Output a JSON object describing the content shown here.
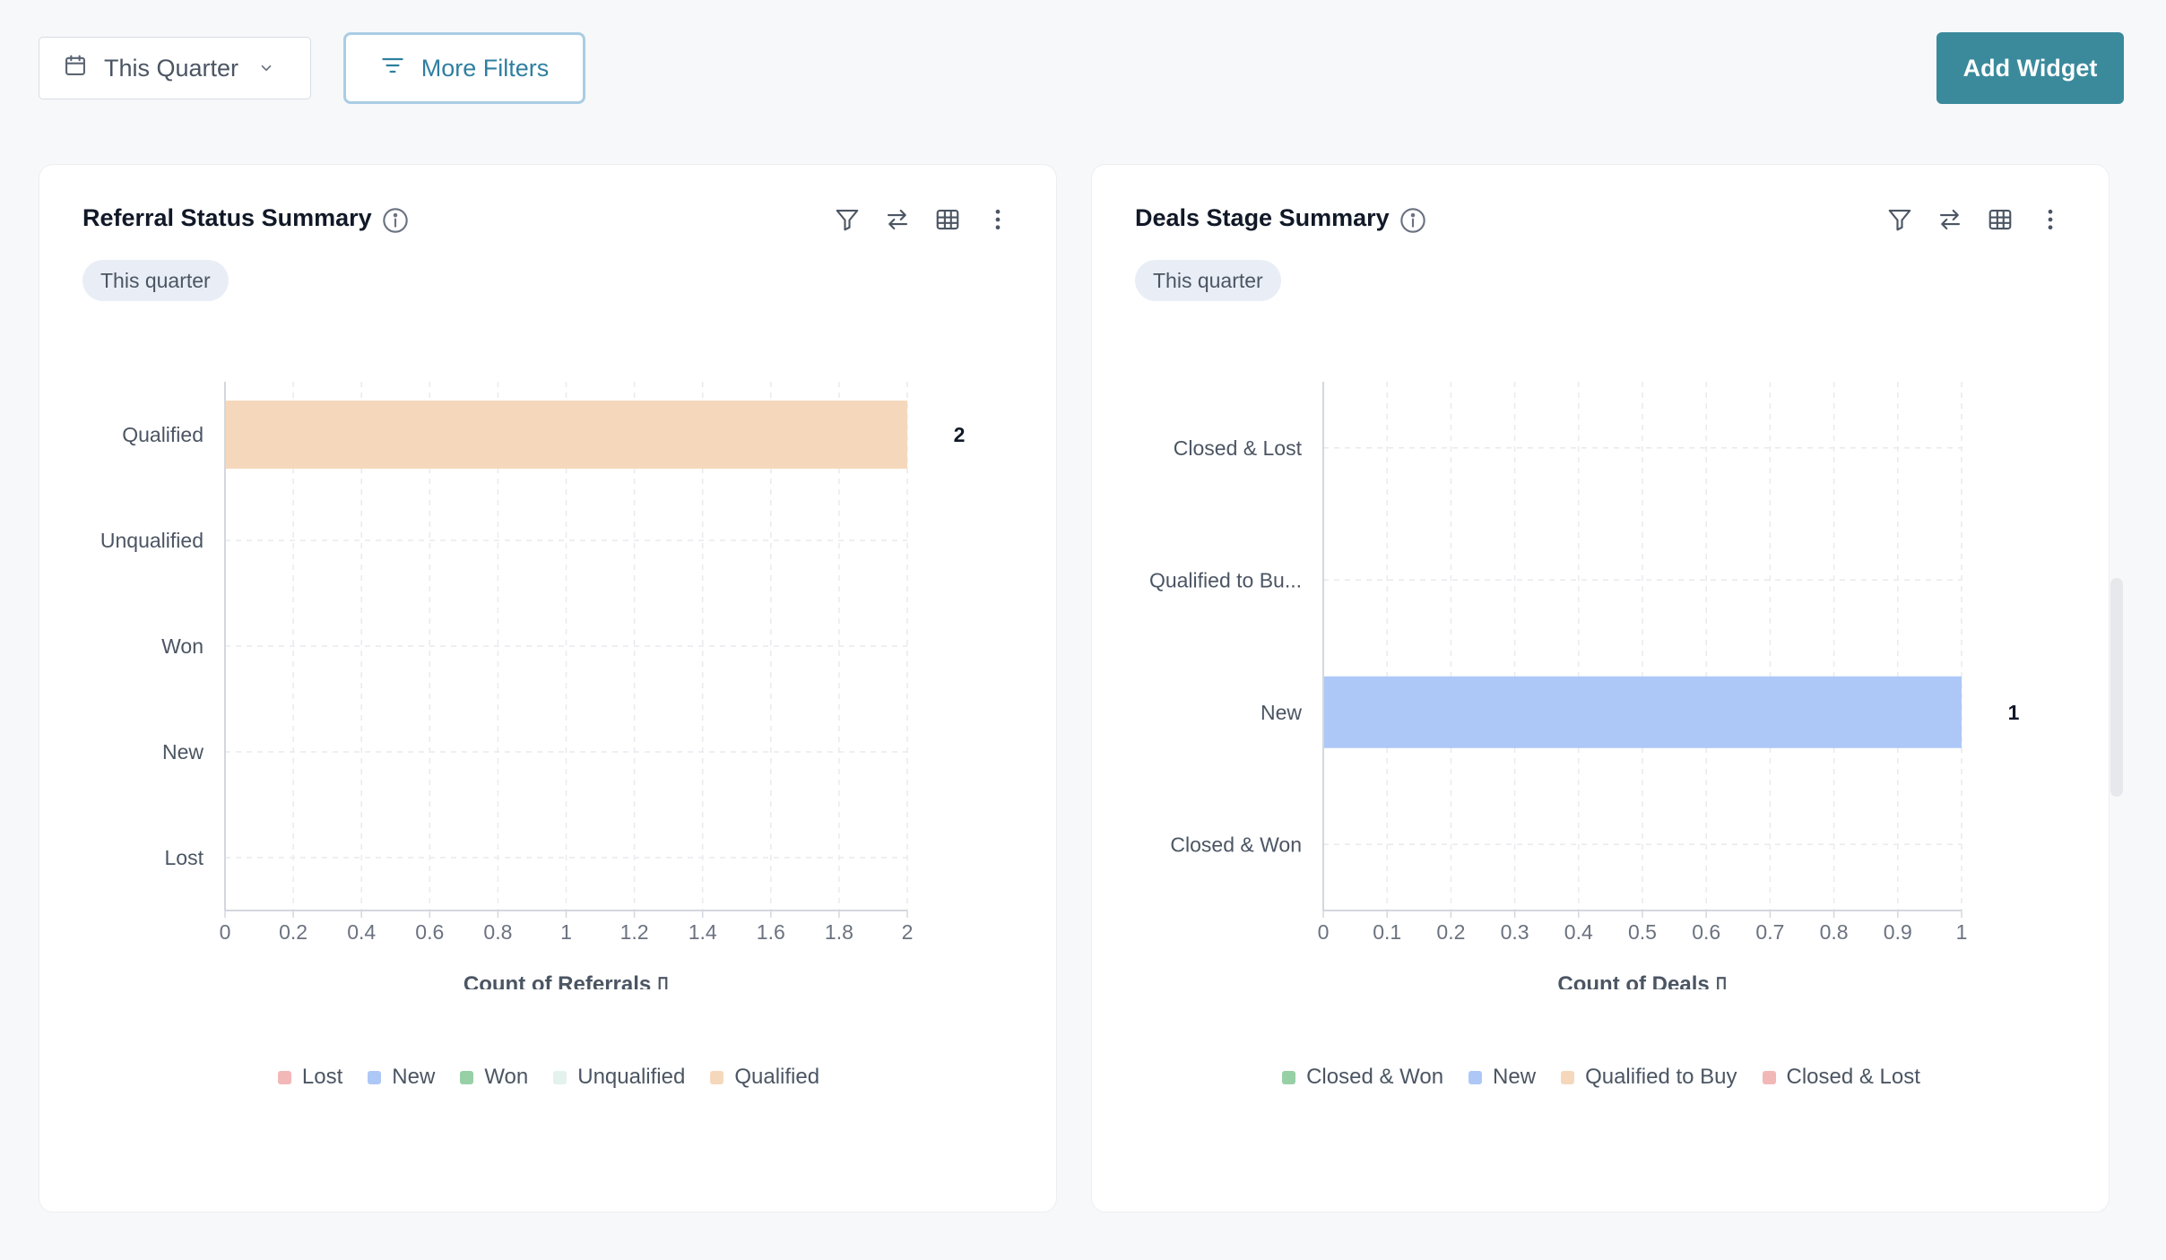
{
  "toolbar": {
    "date_filter_label": "This Quarter",
    "more_filters_label": "More Filters",
    "add_widget_label": "Add Widget"
  },
  "widgets": [
    {
      "title": "Referral Status Summary",
      "period_pill": "This quarter",
      "chart_data": {
        "type": "bar",
        "orientation": "horizontal",
        "categories": [
          "Qualified",
          "Unqualified",
          "Won",
          "New",
          "Lost"
        ],
        "values": [
          2,
          0,
          0,
          0,
          0
        ],
        "data_labels": [
          "2",
          "",
          "",
          "",
          ""
        ],
        "xlim": [
          0,
          2
        ],
        "x_ticks": [
          "0",
          "0.2",
          "0.4",
          "0.6",
          "0.8",
          "1",
          "1.2",
          "1.4",
          "1.6",
          "1.8",
          "2"
        ],
        "xlabel": "Count of Referrals ▯",
        "ylabel": "",
        "grid": true,
        "legend": [
          {
            "label": "Lost",
            "color": "#f2b8b8"
          },
          {
            "label": "New",
            "color": "#adc8f7"
          },
          {
            "label": "Won",
            "color": "#98d0a6"
          },
          {
            "label": "Unqualified",
            "color": "#e3f2ec"
          },
          {
            "label": "Qualified",
            "color": "#f5d8bc"
          }
        ],
        "bar_colors": [
          "#f5d8bc",
          "#e3f2ec",
          "#98d0a6",
          "#adc8f7",
          "#f2b8b8"
        ]
      }
    },
    {
      "title": "Deals Stage Summary",
      "period_pill": "This quarter",
      "chart_data": {
        "type": "bar",
        "orientation": "horizontal",
        "categories": [
          "Closed & Lost",
          "Qualified to Bu...",
          "New",
          "Closed & Won"
        ],
        "values": [
          0,
          0,
          1,
          0
        ],
        "data_labels": [
          "",
          "",
          "1",
          ""
        ],
        "xlim": [
          0,
          1
        ],
        "x_ticks": [
          "0",
          "0.1",
          "0.2",
          "0.3",
          "0.4",
          "0.5",
          "0.6",
          "0.7",
          "0.8",
          "0.9",
          "1"
        ],
        "xlabel": "Count of Deals ▯",
        "ylabel": "",
        "grid": true,
        "legend": [
          {
            "label": "Closed & Won",
            "color": "#98d0a6"
          },
          {
            "label": "New",
            "color": "#adc8f7"
          },
          {
            "label": "Qualified to Buy",
            "color": "#f5d8bc"
          },
          {
            "label": "Closed & Lost",
            "color": "#f2b8b8"
          }
        ],
        "bar_colors": [
          "#f2b8b8",
          "#f5d8bc",
          "#adc8f7",
          "#98d0a6"
        ]
      }
    }
  ]
}
